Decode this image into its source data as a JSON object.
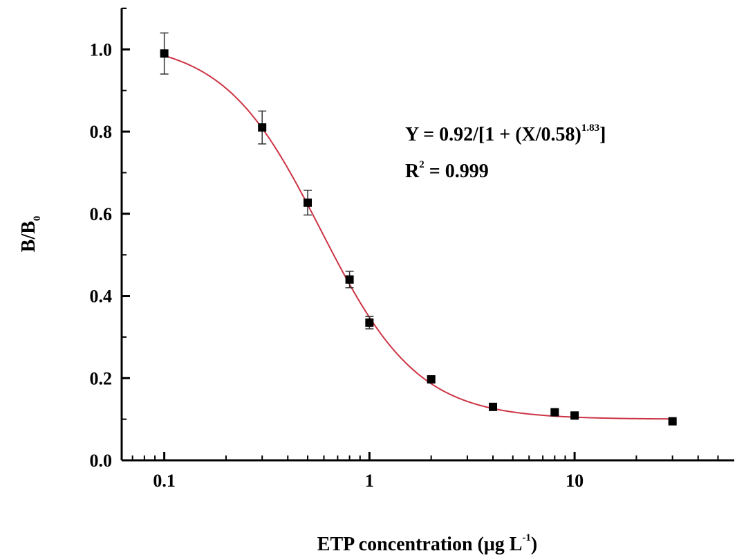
{
  "chart_data": {
    "type": "scatter",
    "title": "",
    "xlabel": "ETP concentration (μg L",
    "xlabel_sup": "-1",
    "xlabel_end": ")",
    "ylabel": "B/B",
    "ylabel_sub": "0",
    "xscale": "log",
    "xlim": [
      0.062,
      60
    ],
    "ylim": [
      0.0,
      1.1
    ],
    "x_ticks": [
      {
        "value": 0.1,
        "label": "0.1"
      },
      {
        "value": 1,
        "label": "1"
      },
      {
        "value": 10,
        "label": "10"
      }
    ],
    "y_ticks": [
      {
        "value": 0.0,
        "label": "0.0"
      },
      {
        "value": 0.2,
        "label": "0.2"
      },
      {
        "value": 0.4,
        "label": "0.4"
      },
      {
        "value": 0.6,
        "label": "0.6"
      },
      {
        "value": 0.8,
        "label": "0.8"
      },
      {
        "value": 1.0,
        "label": "1.0"
      }
    ],
    "grid": false,
    "points": [
      {
        "x": 0.1,
        "y": 0.99,
        "err": 0.05
      },
      {
        "x": 0.3,
        "y": 0.81,
        "err": 0.04
      },
      {
        "x": 0.5,
        "y": 0.627,
        "err": 0.03
      },
      {
        "x": 0.8,
        "y": 0.44,
        "err": 0.02
      },
      {
        "x": 1.0,
        "y": 0.335,
        "err": 0.015
      },
      {
        "x": 2.0,
        "y": 0.197,
        "err": 0.005
      },
      {
        "x": 4.0,
        "y": 0.13,
        "err": 0.004
      },
      {
        "x": 8.0,
        "y": 0.117,
        "err": 0.004
      },
      {
        "x": 10.0,
        "y": 0.109,
        "err": 0.004
      },
      {
        "x": 30.0,
        "y": 0.095,
        "err": 0.004
      }
    ],
    "fit": {
      "top": 1.02,
      "bottom": 0.1,
      "x0": 0.58,
      "p": 1.83,
      "x_from": 0.1,
      "x_to": 30,
      "color": "#cc3344"
    },
    "marker_color": "#000000",
    "annotations": {
      "eq1_main": "Y = 0.92/[1 + (X/0.58)",
      "eq1_sup": "1.83",
      "eq1_end": "]",
      "eq2_main": "R",
      "eq2_sup": "2",
      "eq2_end": " = 0.999"
    }
  }
}
